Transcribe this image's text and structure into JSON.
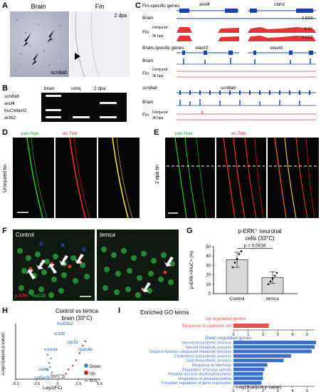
{
  "panelA": {
    "letter": "A",
    "brain_title": "Brain",
    "fin_title": "Fin",
    "dpa_label": "2 dpa",
    "gene_label": "scn8ab"
  },
  "panelB": {
    "letter": "B",
    "columns": [
      "brain",
      "uninj",
      "2 dpa"
    ],
    "rows": [
      "scn8ab",
      "and4",
      "huC/elavl3",
      "actb2"
    ]
  },
  "panelC": {
    "letter": "C",
    "fin_specific_label": "Fin-specific genes",
    "brain_specific_label": "Brain-specific genes",
    "genes_top": [
      "and4",
      "cldn1"
    ],
    "genes_mid": [
      "elavl3",
      "elavl4"
    ],
    "gene_bottom_left": "scn8ab",
    "gene_bottom_center": "scn8ab",
    "track_brain": "Brain",
    "track_fin": "Fin",
    "track_uninjured": "Uninjured",
    "track_36hpa": "36 hpa",
    "scales": [
      "0-2000",
      "0-50",
      "0-5000"
    ]
  },
  "panelD": {
    "letter": "D",
    "label_green": "pan-Nav",
    "label_red": "ac-Tub",
    "side_label": "Uninjured fin"
  },
  "panelE": {
    "letter": "E",
    "label_green": "pan-Nav",
    "label_red": "ac-Tub",
    "side_label": "2 dpa fin"
  },
  "panelF": {
    "letter": "F",
    "control": "Control",
    "temca": "temca",
    "stain_red": "p-ERK",
    "stain_green": "HuC/D"
  },
  "panelG": {
    "letter": "G",
    "title_line1": "p-ERK⁺ neuronal",
    "title_line2": "cells (33°C)",
    "ylabel": "p-ERK+/HuC+ (%)",
    "pvalue": "p = 0.0016",
    "yticks": [
      "0",
      "10",
      "20",
      "30",
      "40",
      "50"
    ],
    "categories": [
      "Control",
      "temca"
    ]
  },
  "panelH": {
    "letter": "H",
    "title_line1": "Control vs temca",
    "title_line2": "brain (33°C)",
    "ylabel": "-Log10(adjust.p-value)",
    "xlabel": "Log2(FC)",
    "xticks": [
      "-5.0",
      "-2.5",
      "0",
      "2.5",
      "5.0"
    ],
    "genes": [
      "hsd11b2",
      "nr1d1",
      "cyp51",
      "npas4a",
      "nocta",
      "ciarta",
      "srd5a2b"
    ],
    "legend": [
      {
        "label": "Down",
        "color": "#4a86c8"
      },
      {
        "label": "Up",
        "color": "#c0272d"
      },
      {
        "label": "N.S.",
        "color": "#b0b0b0"
      }
    ]
  },
  "panelI": {
    "letter": "I",
    "title": "Enriched GO terms",
    "up_header": "Up-regulated genes",
    "down_header": "Down-regulated genes",
    "xlabel": "-Log10(adjust.p-value)",
    "up_ticks": [
      "0",
      "1",
      "2",
      "3",
      "4",
      "5"
    ],
    "down_ticks": [
      "0",
      "1",
      "2",
      "3",
      "4",
      "5"
    ],
    "up_color": "#e4524f",
    "down_color": "#3a6fd0"
  },
  "chart_data": [
    {
      "type": "bar",
      "title": "p-ERK⁺ neuronal cells (33°C)",
      "categories": [
        "Control",
        "temca"
      ],
      "values": [
        36,
        17
      ],
      "errors": [
        8,
        6
      ],
      "points": [
        [
          28,
          33,
          37,
          42,
          45
        ],
        [
          10,
          13,
          16,
          19,
          22
        ]
      ],
      "ylabel": "p-ERK+/HuC+ (%)",
      "ylim": [
        0,
        50
      ]
    },
    {
      "type": "bar",
      "orientation": "horizontal",
      "title": "Up-regulated genes",
      "categories": [
        "Response to cadmium ion"
      ],
      "values": [
        2.4
      ],
      "xlim": [
        0,
        5.5
      ]
    },
    {
      "type": "bar",
      "orientation": "horizontal",
      "title": "Down-regulated genes",
      "categories": [
        "Steroid biosynthetic process",
        "Steroid metabolic process",
        "Organic hydroxy compound metabolic process",
        "Cholesterol biosynthetic process",
        "Lipid biosynthetic process",
        "Response to hormone",
        "Regulation of kinase activity",
        "Peptidyl-tyrosine dephosphorylation",
        "Regulation of phosphorylation",
        "Circadian regulation of gene expression"
      ],
      "values": [
        5.6,
        5.5,
        5.3,
        3.9,
        3.4,
        2.3,
        2.1,
        2.0,
        2.0,
        1.9
      ],
      "xlabel": "-Log10(adjust.p-value)",
      "xlim": [
        0,
        5.5
      ]
    },
    {
      "type": "scatter",
      "title": "Control vs temca brain (33°C)",
      "xlabel": "Log2(FC)",
      "ylabel": "-Log10(adjust.p-value)",
      "xlim": [
        -5,
        5
      ],
      "ylim": [
        0,
        100
      ],
      "series": [
        {
          "name": "Down",
          "x": [
            -1.5,
            -1.2,
            -0.8,
            -1.0,
            -0.9,
            -1.3,
            -0.7
          ],
          "y": [
            55,
            45,
            38,
            30,
            22,
            18,
            12
          ]
        },
        {
          "name": "Up",
          "x": [
            1.0,
            1.3,
            1.8,
            2.2,
            2.6,
            3.0,
            3.3
          ],
          "y": [
            10,
            18,
            25,
            35,
            48,
            62,
            70
          ]
        }
      ]
    }
  ]
}
